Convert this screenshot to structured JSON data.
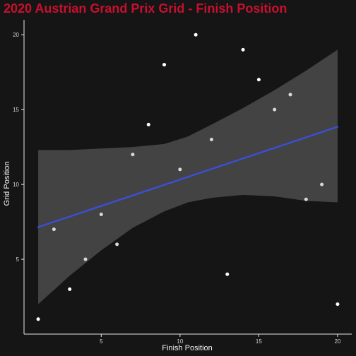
{
  "chart_data": {
    "type": "scatter",
    "title": "2020 Austrian Grand Prix Grid - Finish Position",
    "xlabel": "Finish Position",
    "ylabel": "Grid Position",
    "xlim": [
      0.1,
      20.9
    ],
    "ylim": [
      0.0,
      21.0
    ],
    "xticks": [
      5,
      10,
      15,
      20
    ],
    "yticks": [
      5,
      10,
      15,
      20
    ],
    "grid": false,
    "points": [
      {
        "x": 1,
        "y": 1,
        "within_band": false
      },
      {
        "x": 2,
        "y": 7,
        "within_band": true
      },
      {
        "x": 3,
        "y": 3,
        "within_band": false
      },
      {
        "x": 4,
        "y": 5,
        "within_band": true
      },
      {
        "x": 5,
        "y": 8,
        "within_band": true
      },
      {
        "x": 6,
        "y": 6,
        "within_band": true
      },
      {
        "x": 7,
        "y": 12,
        "within_band": true
      },
      {
        "x": 8,
        "y": 14,
        "within_band": false
      },
      {
        "x": 9,
        "y": 18,
        "within_band": false
      },
      {
        "x": 10,
        "y": 11,
        "within_band": true
      },
      {
        "x": 11,
        "y": 20,
        "within_band": false
      },
      {
        "x": 12,
        "y": 13,
        "within_band": true
      },
      {
        "x": 13,
        "y": 4,
        "within_band": false
      },
      {
        "x": 14,
        "y": 19,
        "within_band": false
      },
      {
        "x": 15,
        "y": 17,
        "within_band": false
      },
      {
        "x": 16,
        "y": 15,
        "within_band": true
      },
      {
        "x": 17,
        "y": 16,
        "within_band": true
      },
      {
        "x": 18,
        "y": 9,
        "within_band": true
      },
      {
        "x": 19,
        "y": 10,
        "within_band": true
      },
      {
        "x": 20,
        "y": 2,
        "within_band": false
      }
    ],
    "regression_line": {
      "x": [
        1,
        20
      ],
      "y": [
        7.15,
        13.85
      ]
    },
    "confidence_band": {
      "x": [
        1,
        3,
        5,
        7,
        9,
        10.5,
        12,
        14,
        16,
        18,
        20
      ],
      "lower": [
        2.0,
        3.9,
        5.6,
        7.1,
        8.2,
        8.8,
        9.1,
        9.3,
        9.2,
        8.9,
        8.8
      ],
      "upper": [
        12.3,
        12.3,
        12.4,
        12.5,
        12.7,
        13.2,
        14.0,
        15.1,
        16.3,
        17.6,
        19.0
      ]
    },
    "colors": {
      "background": "#151515",
      "title": "#c8102e",
      "axis_line": "#e6e6e6",
      "text": "#f2f2f2",
      "tick_text": "#cfcfcf",
      "point_outside_band": "#ffffff",
      "point_inside_band": "#d9d9d9",
      "band_fill": "#464646",
      "line": "#3a4fd6"
    }
  }
}
